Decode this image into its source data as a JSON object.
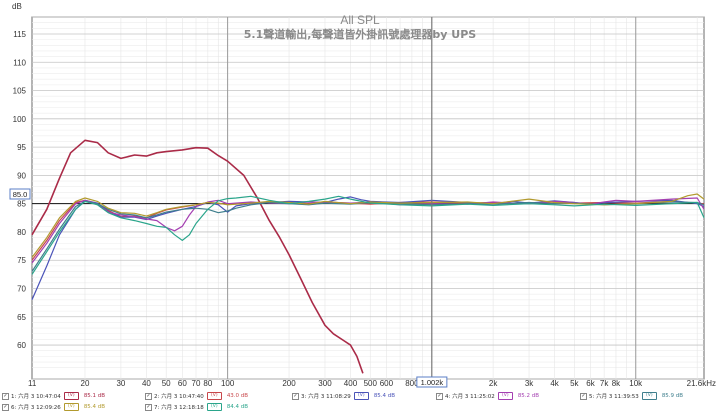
{
  "chart_data": {
    "type": "line",
    "title": "All SPL",
    "subtitle": "5.1聲道輸出,每聲道皆外掛訊號處理器by UPS",
    "ylabel": "dB",
    "xscale": "log",
    "xlim": [
      11,
      21600
    ],
    "ylim": [
      54,
      118
    ],
    "yticks": [
      60,
      65,
      70,
      75,
      80,
      85,
      90,
      95,
      100,
      105,
      110,
      115
    ],
    "xticks": [
      {
        "v": 11,
        "label": "11"
      },
      {
        "v": 20,
        "label": "20"
      },
      {
        "v": 30,
        "label": "30"
      },
      {
        "v": 40,
        "label": "40"
      },
      {
        "v": 50,
        "label": "50"
      },
      {
        "v": 60,
        "label": "60"
      },
      {
        "v": 70,
        "label": "70"
      },
      {
        "v": 80,
        "label": "80"
      },
      {
        "v": 100,
        "label": "100"
      },
      {
        "v": 200,
        "label": "200"
      },
      {
        "v": 300,
        "label": "300"
      },
      {
        "v": 400,
        "label": "400"
      },
      {
        "v": 500,
        "label": "500"
      },
      {
        "v": 600,
        "label": "600"
      },
      {
        "v": 800,
        "label": "800"
      },
      {
        "v": 2000,
        "label": "2k"
      },
      {
        "v": 3000,
        "label": "3k"
      },
      {
        "v": 4000,
        "label": "4k"
      },
      {
        "v": 5000,
        "label": "5k"
      },
      {
        "v": 6000,
        "label": "6k"
      },
      {
        "v": 7000,
        "label": "7k"
      },
      {
        "v": 8000,
        "label": "8k"
      },
      {
        "v": 10000,
        "label": "10k"
      },
      {
        "v": 21600,
        "label": "21.6kHz"
      }
    ],
    "reference_level": {
      "value": 85.0,
      "label": "85.0"
    },
    "cursor": {
      "value": 1002,
      "label": "1.002k"
    },
    "grid": true,
    "legend_position": "bottom",
    "series": [
      {
        "name": "1: 六月 3 10:47:04",
        "color": "#aa2b48",
        "level": "85.1 dB",
        "points": [
          [
            11,
            79.5
          ],
          [
            13,
            84
          ],
          [
            15,
            89.5
          ],
          [
            17,
            94
          ],
          [
            20,
            96.2
          ],
          [
            23,
            95.8
          ],
          [
            26,
            94
          ],
          [
            30,
            93
          ],
          [
            35,
            93.6
          ],
          [
            40,
            93.4
          ],
          [
            45,
            94
          ],
          [
            50,
            94.2
          ],
          [
            60,
            94.5
          ],
          [
            70,
            94.9
          ],
          [
            80,
            94.8
          ],
          [
            90,
            93.5
          ],
          [
            100,
            92.5
          ],
          [
            120,
            90
          ],
          [
            140,
            86
          ],
          [
            160,
            82
          ],
          [
            180,
            79
          ],
          [
            200,
            76
          ],
          [
            230,
            71.5
          ],
          [
            260,
            67.5
          ],
          [
            300,
            63.5
          ],
          [
            330,
            62
          ],
          [
            370,
            60.8
          ],
          [
            400,
            60
          ],
          [
            430,
            58
          ],
          [
            460,
            55
          ]
        ]
      },
      {
        "name": "2: 六月 3 10:47:40",
        "color": "#c8474b",
        "level": "43.0 dB",
        "points": [
          [
            11,
            75
          ],
          [
            13,
            78.5
          ],
          [
            15,
            82
          ],
          [
            18,
            85.2
          ],
          [
            20,
            85.6
          ],
          [
            23,
            85
          ],
          [
            26,
            83.8
          ],
          [
            30,
            82.7
          ],
          [
            35,
            82.8
          ],
          [
            40,
            82.5
          ],
          [
            45,
            83.3
          ],
          [
            50,
            83.9
          ],
          [
            60,
            84.4
          ],
          [
            70,
            84.8
          ],
          [
            80,
            85.2
          ],
          [
            90,
            85
          ],
          [
            100,
            84.9
          ],
          [
            130,
            85.1
          ],
          [
            160,
            85.3
          ],
          [
            200,
            85.2
          ],
          [
            250,
            85
          ],
          [
            300,
            85.3
          ],
          [
            400,
            85.1
          ],
          [
            500,
            84.9
          ],
          [
            700,
            85.2
          ],
          [
            1000,
            85.3
          ],
          [
            1500,
            85.1
          ],
          [
            2000,
            85.2
          ],
          [
            3000,
            85
          ],
          [
            4000,
            85.3
          ],
          [
            5000,
            85.1
          ],
          [
            7000,
            85.2
          ],
          [
            10000,
            85.1
          ],
          [
            15000,
            85.4
          ],
          [
            21600,
            85
          ]
        ]
      },
      {
        "name": "3: 六月 3 11:08:29",
        "color": "#4a53b8",
        "level": "85.4 dB",
        "points": [
          [
            11,
            68
          ],
          [
            13,
            74
          ],
          [
            15,
            79.5
          ],
          [
            18,
            84
          ],
          [
            20,
            85.6
          ],
          [
            23,
            85.1
          ],
          [
            26,
            83.6
          ],
          [
            30,
            82.6
          ],
          [
            35,
            82.6
          ],
          [
            40,
            82.2
          ],
          [
            45,
            82.8
          ],
          [
            50,
            83.3
          ],
          [
            60,
            84
          ],
          [
            70,
            84.5
          ],
          [
            80,
            85.2
          ],
          [
            90,
            84.8
          ],
          [
            100,
            83.5
          ],
          [
            110,
            84.6
          ],
          [
            130,
            85
          ],
          [
            160,
            85.2
          ],
          [
            200,
            85.4
          ],
          [
            250,
            85.3
          ],
          [
            300,
            85.2
          ],
          [
            350,
            85.8
          ],
          [
            400,
            86.2
          ],
          [
            450,
            85.7
          ],
          [
            500,
            85.4
          ],
          [
            700,
            85.2
          ],
          [
            1000,
            85.6
          ],
          [
            1500,
            85.2
          ],
          [
            2000,
            85
          ],
          [
            2500,
            85.4
          ],
          [
            3000,
            85.1
          ],
          [
            4000,
            85.5
          ],
          [
            5000,
            85.2
          ],
          [
            6000,
            84.8
          ],
          [
            7000,
            85.2
          ],
          [
            10000,
            85.4
          ],
          [
            15000,
            85.6
          ],
          [
            20000,
            85
          ],
          [
            21600,
            84.5
          ]
        ]
      },
      {
        "name": "4: 六月 3 11:25:02",
        "color": "#a43fb1",
        "level": "85.2 dB",
        "points": [
          [
            11,
            74.5
          ],
          [
            13,
            78
          ],
          [
            15,
            81.5
          ],
          [
            18,
            85
          ],
          [
            20,
            85.6
          ],
          [
            23,
            85
          ],
          [
            26,
            83.5
          ],
          [
            30,
            83
          ],
          [
            35,
            82.7
          ],
          [
            40,
            82.3
          ],
          [
            45,
            82
          ],
          [
            50,
            80.8
          ],
          [
            55,
            80.2
          ],
          [
            60,
            81
          ],
          [
            65,
            83
          ],
          [
            70,
            84.5
          ],
          [
            80,
            85.3
          ],
          [
            90,
            85.6
          ],
          [
            100,
            85
          ],
          [
            130,
            85.3
          ],
          [
            160,
            85.1
          ],
          [
            200,
            85
          ],
          [
            250,
            85.3
          ],
          [
            300,
            85.2
          ],
          [
            400,
            85.1
          ],
          [
            500,
            85.3
          ],
          [
            700,
            84.8
          ],
          [
            1000,
            85
          ],
          [
            1500,
            84.9
          ],
          [
            2000,
            85.3
          ],
          [
            2500,
            85.1
          ],
          [
            3000,
            85
          ],
          [
            4000,
            85.4
          ],
          [
            5000,
            85.2
          ],
          [
            6000,
            84.9
          ],
          [
            7000,
            85.3
          ],
          [
            8000,
            85.6
          ],
          [
            10000,
            85.4
          ],
          [
            15000,
            85.8
          ],
          [
            20000,
            86
          ],
          [
            21600,
            84
          ]
        ]
      },
      {
        "name": "5: 六月 3 11:39:53",
        "color": "#3f7f8d",
        "level": "85.9 dB",
        "points": [
          [
            11,
            73
          ],
          [
            13,
            77
          ],
          [
            15,
            80.5
          ],
          [
            18,
            84.5
          ],
          [
            20,
            85.4
          ],
          [
            23,
            85
          ],
          [
            26,
            84
          ],
          [
            30,
            83.2
          ],
          [
            35,
            83
          ],
          [
            40,
            82.5
          ],
          [
            45,
            83
          ],
          [
            50,
            83.5
          ],
          [
            60,
            84
          ],
          [
            70,
            84.2
          ],
          [
            80,
            84
          ],
          [
            90,
            83.4
          ],
          [
            100,
            83.7
          ],
          [
            110,
            84.2
          ],
          [
            130,
            84.8
          ],
          [
            160,
            85.2
          ],
          [
            200,
            85
          ],
          [
            250,
            84.8
          ],
          [
            300,
            85.1
          ],
          [
            400,
            84.9
          ],
          [
            500,
            85.2
          ],
          [
            700,
            85
          ],
          [
            1000,
            84.8
          ],
          [
            1500,
            85
          ],
          [
            2000,
            84.9
          ],
          [
            3000,
            85.2
          ],
          [
            4000,
            85
          ],
          [
            5000,
            85.1
          ],
          [
            7000,
            84.8
          ],
          [
            10000,
            85
          ],
          [
            15000,
            85.3
          ],
          [
            20000,
            85.2
          ],
          [
            21600,
            84.8
          ]
        ]
      },
      {
        "name": "6: 六月 3 12:09:26",
        "color": "#b29a2e",
        "level": "85.4 dB",
        "points": [
          [
            11,
            75.5
          ],
          [
            13,
            79
          ],
          [
            15,
            82.5
          ],
          [
            18,
            85.4
          ],
          [
            20,
            86
          ],
          [
            23,
            85.4
          ],
          [
            26,
            84.2
          ],
          [
            30,
            83.4
          ],
          [
            35,
            83.3
          ],
          [
            40,
            82.8
          ],
          [
            45,
            83.4
          ],
          [
            50,
            84
          ],
          [
            60,
            84.5
          ],
          [
            70,
            84.8
          ],
          [
            80,
            85.2
          ],
          [
            90,
            85.1
          ],
          [
            100,
            84.8
          ],
          [
            130,
            85.1
          ],
          [
            160,
            85.4
          ],
          [
            200,
            85.2
          ],
          [
            250,
            84.9
          ],
          [
            300,
            85.4
          ],
          [
            400,
            85
          ],
          [
            500,
            85.3
          ],
          [
            700,
            85.1
          ],
          [
            1000,
            85.2
          ],
          [
            1500,
            85.3
          ],
          [
            2000,
            85
          ],
          [
            3000,
            85.8
          ],
          [
            4000,
            85.2
          ],
          [
            5000,
            85
          ],
          [
            7000,
            84.8
          ],
          [
            10000,
            85
          ],
          [
            15000,
            85.4
          ],
          [
            18000,
            86.4
          ],
          [
            20000,
            86.7
          ],
          [
            21600,
            85.8
          ]
        ]
      },
      {
        "name": "7: 六月 3 12:18:18",
        "color": "#2aa58b",
        "level": "84.4 dB",
        "points": [
          [
            11,
            72.5
          ],
          [
            13,
            76.5
          ],
          [
            15,
            80
          ],
          [
            18,
            84
          ],
          [
            20,
            85.4
          ],
          [
            23,
            84.8
          ],
          [
            26,
            83.4
          ],
          [
            30,
            82.5
          ],
          [
            35,
            82
          ],
          [
            40,
            81.5
          ],
          [
            45,
            81
          ],
          [
            50,
            80.8
          ],
          [
            55,
            79.5
          ],
          [
            60,
            78.5
          ],
          [
            65,
            79.5
          ],
          [
            70,
            81.5
          ],
          [
            80,
            84
          ],
          [
            90,
            85.5
          ],
          [
            100,
            85.9
          ],
          [
            110,
            86
          ],
          [
            130,
            86.3
          ],
          [
            160,
            85.6
          ],
          [
            200,
            85
          ],
          [
            250,
            85.4
          ],
          [
            300,
            85.8
          ],
          [
            350,
            86.3
          ],
          [
            400,
            85.8
          ],
          [
            500,
            85.1
          ],
          [
            700,
            84.8
          ],
          [
            1000,
            84.6
          ],
          [
            1500,
            84.9
          ],
          [
            2000,
            84.7
          ],
          [
            3000,
            85
          ],
          [
            4000,
            84.8
          ],
          [
            5000,
            84.6
          ],
          [
            7000,
            84.9
          ],
          [
            10000,
            84.7
          ],
          [
            15000,
            85
          ],
          [
            20000,
            85.2
          ],
          [
            21600,
            82.5
          ]
        ]
      }
    ]
  }
}
